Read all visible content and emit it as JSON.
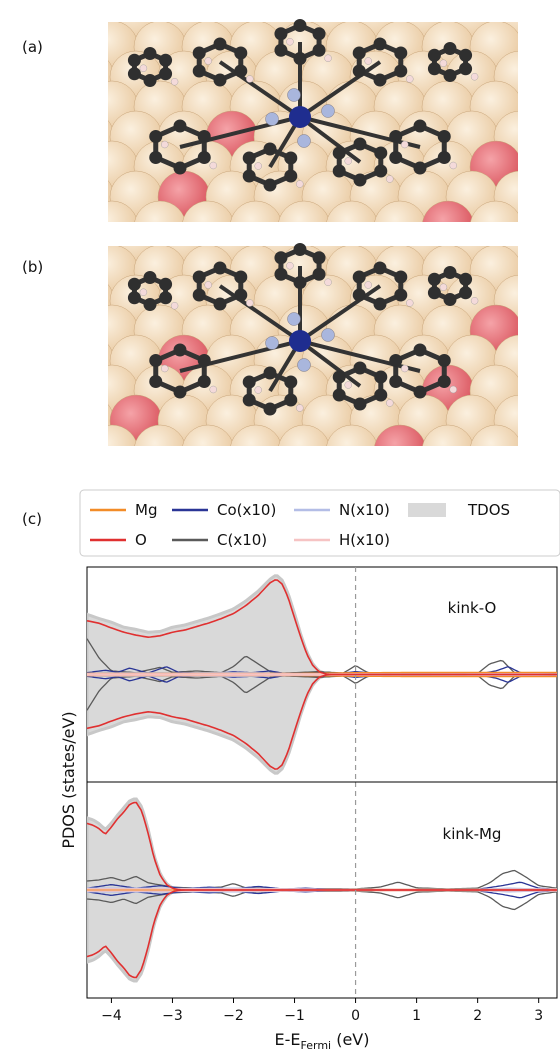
{
  "panels": {
    "a_label": "(a)",
    "b_label": "(b)",
    "c_label": "(c)"
  },
  "molecule_colors": {
    "surface_atom": "#e9c9a0",
    "oxygen_atom": "#d9535c",
    "carbon": "#2f2f2f",
    "nitrogen": "#a9b6dd",
    "cobalt": "#1f2d8f",
    "hydrogen": "#f4dada"
  },
  "chart_data": {
    "type": "area",
    "xlabel_main": "E-E",
    "xlabel_sub": "Fermi",
    "xlabel_unit": " (eV)",
    "ylabel": "PDOS (states/eV)",
    "xlim": [
      -4.4,
      3.3
    ],
    "xticks": [
      -4,
      -3,
      -2,
      -1,
      0,
      1,
      2,
      3
    ],
    "fermi_line": 0,
    "legend": [
      {
        "name": "Mg",
        "color": "#f28c28",
        "kind": "line"
      },
      {
        "name": "Co(x10)",
        "color": "#2a3596",
        "kind": "line"
      },
      {
        "name": "N(x10)",
        "color": "#b3bde6",
        "kind": "line"
      },
      {
        "name": "TDOS",
        "color": "#d9d9d9",
        "kind": "fill"
      },
      {
        "name": "O",
        "color": "#e03030",
        "kind": "line"
      },
      {
        "name": "C(x10)",
        "color": "#5a5a5a",
        "kind": "line"
      },
      {
        "name": "H(x10)",
        "color": "#f6c3c3",
        "kind": "line"
      }
    ],
    "subplots": [
      {
        "annotation": "kink-O",
        "ylim": [
          -3,
          3
        ],
        "tdos": {
          "x": [
            -4.4,
            -4.2,
            -4.0,
            -3.8,
            -3.6,
            -3.4,
            -3.2,
            -3.0,
            -2.8,
            -2.6,
            -2.4,
            -2.2,
            -2.0,
            -1.8,
            -1.6,
            -1.4,
            -1.3,
            -1.2,
            -1.1,
            -1.0,
            -0.9,
            -0.8,
            -0.7,
            -0.6,
            -0.5,
            -0.4
          ],
          "y": [
            1.68,
            1.56,
            1.46,
            1.32,
            1.26,
            1.18,
            1.2,
            1.32,
            1.38,
            1.48,
            1.58,
            1.7,
            1.83,
            2.05,
            2.32,
            2.66,
            2.78,
            2.63,
            2.24,
            1.7,
            1.13,
            0.63,
            0.29,
            0.1,
            0.03,
            0.0
          ]
        },
        "o": {
          "x": [
            -4.4,
            -4.2,
            -4.0,
            -3.8,
            -3.6,
            -3.4,
            -3.2,
            -3.0,
            -2.8,
            -2.6,
            -2.4,
            -2.2,
            -2.0,
            -1.8,
            -1.6,
            -1.4,
            -1.3,
            -1.2,
            -1.1,
            -1.0,
            -0.9,
            -0.8,
            -0.7,
            -0.6,
            -0.5,
            -0.4
          ],
          "y": [
            1.5,
            1.43,
            1.3,
            1.18,
            1.1,
            1.04,
            1.08,
            1.18,
            1.24,
            1.34,
            1.44,
            1.56,
            1.7,
            1.92,
            2.2,
            2.56,
            2.66,
            2.52,
            2.12,
            1.58,
            1.05,
            0.57,
            0.25,
            0.08,
            0.02,
            0.0
          ]
        },
        "c": {
          "x": [
            -4.4,
            -4.2,
            -4.0,
            -3.6,
            -3.2,
            -3.0,
            -2.6,
            -2.2,
            -2.0,
            -1.8,
            -1.6,
            -1.4,
            -1.2,
            -1.0,
            -0.6,
            -0.2,
            0.0,
            0.2,
            0.6,
            1.0,
            1.6,
            2.0,
            2.2,
            2.4,
            2.6,
            2.8,
            3.0,
            3.3
          ],
          "y": [
            1.0,
            0.45,
            0.1,
            0.05,
            0.2,
            0.06,
            0.1,
            0.05,
            0.22,
            0.52,
            0.3,
            0.08,
            0.04,
            0.05,
            0.08,
            0.04,
            0.25,
            0.05,
            0.02,
            0.02,
            0.02,
            0.03,
            0.3,
            0.4,
            0.05,
            0.02,
            0.03,
            0.02
          ]
        },
        "co": {
          "x": [
            -4.4,
            -4.1,
            -3.9,
            -3.7,
            -3.4,
            -3.1,
            -2.9,
            -2.6,
            -2.3,
            -2.0,
            -1.7,
            -1.4,
            -1.2,
            -0.9,
            -0.6,
            -0.3,
            0.0,
            0.5,
            1.0,
            2.0,
            2.3,
            2.5,
            2.7,
            3.0,
            3.3
          ],
          "y": [
            0.05,
            0.12,
            0.06,
            0.18,
            0.04,
            0.22,
            0.06,
            0.04,
            0.03,
            0.08,
            0.05,
            0.1,
            0.04,
            0.03,
            0.05,
            0.02,
            0.08,
            0.01,
            0.01,
            0.01,
            0.1,
            0.22,
            0.05,
            0.02,
            0.01
          ]
        },
        "n": {
          "x": [
            -4.4,
            -3.5,
            -3.0,
            -2.0,
            -1.0,
            0.0,
            1.0,
            2.0,
            2.5,
            3.3
          ],
          "y": [
            0.04,
            0.05,
            0.04,
            0.06,
            0.03,
            0.02,
            0.01,
            0.02,
            0.04,
            0.01
          ]
        },
        "mg": {
          "x": [
            -4.4,
            -3.0,
            -1.0,
            0.0,
            1.0,
            2.0,
            3.3
          ],
          "y": [
            0.03,
            0.03,
            0.03,
            0.05,
            0.06,
            0.06,
            0.06
          ]
        },
        "h": {
          "x": [
            -4.4,
            -3.0,
            -1.0,
            0.0,
            1.0,
            2.0,
            3.3
          ],
          "y": [
            0.02,
            0.02,
            0.02,
            0.02,
            0.02,
            0.02,
            0.02
          ]
        }
      },
      {
        "annotation": "kink-Mg",
        "ylim": [
          -3,
          3
        ],
        "tdos": {
          "x": [
            -4.4,
            -4.3,
            -4.2,
            -4.1,
            -4.0,
            -3.9,
            -3.8,
            -3.7,
            -3.6,
            -3.5,
            -3.4,
            -3.3,
            -3.2,
            -3.1,
            -3.0,
            -2.9,
            -2.8
          ],
          "y": [
            2.0,
            1.95,
            1.84,
            1.68,
            1.86,
            2.08,
            2.28,
            2.48,
            2.55,
            2.3,
            1.7,
            0.95,
            0.45,
            0.18,
            0.06,
            0.02,
            0.0
          ]
        },
        "o": {
          "x": [
            -4.4,
            -4.3,
            -4.2,
            -4.1,
            -4.0,
            -3.9,
            -3.8,
            -3.7,
            -3.6,
            -3.5,
            -3.4,
            -3.3,
            -3.2,
            -3.1,
            -3.0,
            -2.9,
            -2.8
          ],
          "y": [
            1.85,
            1.8,
            1.7,
            1.55,
            1.75,
            1.98,
            2.16,
            2.38,
            2.45,
            2.18,
            1.58,
            0.88,
            0.4,
            0.15,
            0.05,
            0.01,
            0.0
          ]
        },
        "c": {
          "x": [
            -4.4,
            -4.2,
            -4.0,
            -3.8,
            -3.6,
            -3.4,
            -3.0,
            -2.6,
            -2.2,
            -2.0,
            -1.8,
            -1.4,
            -1.0,
            -0.5,
            0.0,
            0.4,
            0.7,
            1.0,
            1.5,
            2.0,
            2.2,
            2.4,
            2.6,
            2.8,
            3.0,
            3.3
          ],
          "y": [
            0.25,
            0.28,
            0.35,
            0.25,
            0.38,
            0.2,
            0.08,
            0.05,
            0.08,
            0.18,
            0.06,
            0.04,
            0.03,
            0.04,
            0.03,
            0.08,
            0.22,
            0.06,
            0.03,
            0.05,
            0.2,
            0.45,
            0.55,
            0.35,
            0.12,
            0.05
          ]
        },
        "co": {
          "x": [
            -4.4,
            -4.0,
            -3.6,
            -3.2,
            -2.8,
            -2.4,
            -2.0,
            -1.6,
            -1.2,
            -0.8,
            -0.4,
            0.0,
            1.0,
            2.0,
            2.4,
            2.7,
            3.0,
            3.3
          ],
          "y": [
            0.05,
            0.15,
            0.05,
            0.12,
            0.04,
            0.08,
            0.03,
            0.1,
            0.03,
            0.05,
            0.02,
            0.02,
            0.01,
            0.02,
            0.12,
            0.22,
            0.05,
            0.02
          ]
        },
        "n": {
          "x": [
            -4.4,
            -3.5,
            -3.0,
            -2.0,
            -1.0,
            0.0,
            1.0,
            2.0,
            2.5,
            3.3
          ],
          "y": [
            0.05,
            0.05,
            0.04,
            0.05,
            0.03,
            0.02,
            0.01,
            0.02,
            0.05,
            0.02
          ]
        },
        "mg": {
          "x": [
            -4.4,
            -3.0,
            -1.0,
            0.0,
            1.0,
            2.0,
            3.3
          ],
          "y": [
            0.02,
            0.02,
            0.02,
            0.02,
            0.02,
            0.02,
            0.02
          ]
        },
        "h": {
          "x": [
            -4.4,
            -3.0,
            -1.0,
            0.0,
            1.0,
            2.0,
            3.3
          ],
          "y": [
            0.03,
            0.03,
            0.03,
            0.02,
            0.02,
            0.02,
            0.03
          ]
        }
      }
    ]
  }
}
